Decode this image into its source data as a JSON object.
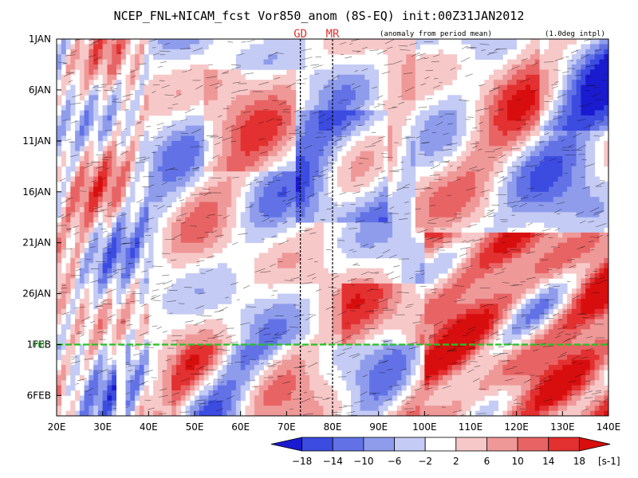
{
  "chart_data": {
    "type": "heatmap",
    "title": "NCEP_FNL+NICAM_fcst Vor850_anom (8S-EQ) init:00Z31JAN2012",
    "subtitle_left": "(anomaly from period mean)",
    "subtitle_right": "(1.0deg intpl)",
    "x_axis": {
      "ticks": [
        "20E",
        "30E",
        "40E",
        "50E",
        "60E",
        "70E",
        "80E",
        "90E",
        "100E",
        "110E",
        "120E",
        "130E",
        "140E"
      ],
      "lon_range": [
        20,
        140
      ]
    },
    "y_axis": {
      "ticks": [
        "1JAN",
        "6JAN",
        "11JAN",
        "16JAN",
        "21JAN",
        "26JAN",
        "1FEB",
        "6FEB"
      ],
      "day_range": [
        1,
        38
      ]
    },
    "markers": [
      {
        "label": "GD",
        "lon": 73
      },
      {
        "label": "MR",
        "lon": 80
      }
    ],
    "init_line": {
      "label": "init",
      "day": 31
    },
    "colorbar": {
      "levels": [
        "-18",
        "-14",
        "-10",
        "-6",
        "-2",
        "2",
        "6",
        "10",
        "14",
        "18"
      ],
      "colors": [
        "#1a1ad0",
        "#3c4be0",
        "#6272e6",
        "#8f9cec",
        "#c4cbf4",
        "#ffffff",
        "#f7c8c8",
        "#ef9898",
        "#e86464",
        "#e33030",
        "#d80e0e"
      ],
      "unit": "[s-1]"
    },
    "blank_strip_lon": [
      33,
      35
    ],
    "blank_strip_after_day": 31
  }
}
